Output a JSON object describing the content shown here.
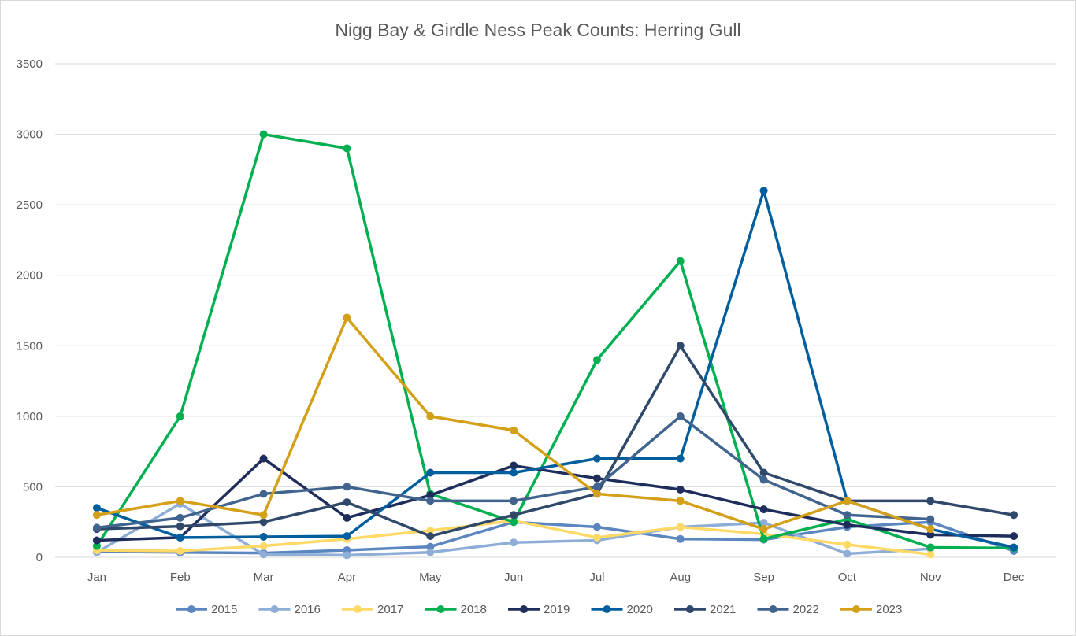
{
  "chart_data": {
    "type": "line",
    "title": "Nigg Bay & Girdle Ness Peak Counts: Herring Gull",
    "xlabel": "",
    "ylabel": "",
    "categories": [
      "Jan",
      "Feb",
      "Mar",
      "Apr",
      "May",
      "Jun",
      "Jul",
      "Aug",
      "Sep",
      "Oct",
      "Nov",
      "Dec"
    ],
    "ylim": [
      0,
      3500
    ],
    "yticks": [
      0,
      500,
      1000,
      1500,
      2000,
      2500,
      3000,
      3500
    ],
    "grid": true,
    "legend_position": "bottom",
    "series": [
      {
        "name": "2015",
        "color": "#5B86BF",
        "values": [
          40,
          35,
          30,
          50,
          75,
          250,
          215,
          130,
          125,
          215,
          250,
          45
        ]
      },
      {
        "name": "2016",
        "color": "#8EAED7",
        "values": [
          35,
          380,
          20,
          15,
          35,
          105,
          120,
          215,
          245,
          25,
          60,
          null
        ]
      },
      {
        "name": "2017",
        "color": "#FFD966",
        "values": [
          50,
          45,
          80,
          130,
          190,
          260,
          140,
          215,
          165,
          90,
          20,
          null
        ]
      },
      {
        "name": "2018",
        "color": "#00B050",
        "values": [
          80,
          1000,
          3000,
          2900,
          450,
          250,
          1400,
          2100,
          130,
          270,
          70,
          65
        ]
      },
      {
        "name": "2019",
        "color": "#1F2D5C",
        "values": [
          120,
          140,
          700,
          280,
          440,
          650,
          560,
          480,
          340,
          230,
          160,
          150
        ]
      },
      {
        "name": "2020",
        "color": "#005E9E",
        "values": [
          350,
          140,
          145,
          150,
          600,
          600,
          700,
          700,
          2600,
          400,
          200,
          70
        ]
      },
      {
        "name": "2021",
        "color": "#30496A",
        "values": [
          200,
          220,
          250,
          390,
          150,
          300,
          450,
          1500,
          600,
          400,
          400,
          300
        ]
      },
      {
        "name": "2022",
        "color": "#41648E",
        "values": [
          210,
          280,
          450,
          500,
          400,
          400,
          500,
          1000,
          550,
          300,
          270,
          null
        ]
      },
      {
        "name": "2023",
        "color": "#D4A017",
        "values": [
          300,
          400,
          300,
          1700,
          1000,
          900,
          450,
          400,
          200,
          400,
          200,
          null
        ]
      }
    ]
  }
}
